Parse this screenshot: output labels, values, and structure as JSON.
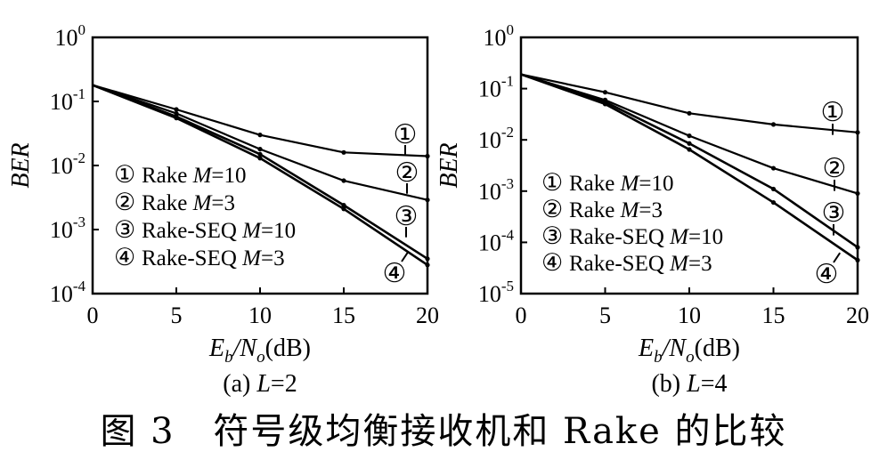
{
  "figure_caption": {
    "label": "图 3",
    "text": "符号级均衡接收机和 Rake 的比较"
  },
  "chart_data": [
    {
      "type": "line",
      "panel_label": "(a)",
      "panel_param": "L=2",
      "ylabel": "BER",
      "xlabel_parts": [
        "E",
        "b",
        "/N",
        "o",
        "(dB)"
      ],
      "yscale": "log",
      "xlim": [
        0,
        20
      ],
      "ylim": [
        0.0001,
        1
      ],
      "xticks": [
        0,
        5,
        10,
        15,
        20
      ],
      "yticks_exp": [
        0,
        -1,
        -2,
        -3,
        -4
      ],
      "grid": false,
      "legend_position": "bottom-left",
      "series": [
        {
          "name": "Rake M=10",
          "marker_label": "①",
          "name_text": "Rake ",
          "name_param": "M",
          "name_value": "=10",
          "x": [
            0,
            5,
            10,
            15,
            20
          ],
          "y": [
            0.18,
            0.075,
            0.03,
            0.016,
            0.014
          ]
        },
        {
          "name": "Rake M=3",
          "marker_label": "②",
          "name_text": "Rake ",
          "name_param": "M",
          "name_value": "=3",
          "x": [
            0,
            5,
            10,
            15,
            20
          ],
          "y": [
            0.18,
            0.065,
            0.018,
            0.0058,
            0.0029
          ]
        },
        {
          "name": "Rake-SEQ M=10",
          "marker_label": "③",
          "name_text": "Rake-SEQ ",
          "name_param": "M",
          "name_value": "=10",
          "x": [
            0,
            5,
            10,
            15,
            20
          ],
          "y": [
            0.18,
            0.058,
            0.015,
            0.0024,
            0.00035
          ]
        },
        {
          "name": "Rake-SEQ M=3",
          "marker_label": "④",
          "name_text": "Rake-SEQ ",
          "name_param": "M",
          "name_value": "=3",
          "x": [
            0,
            5,
            10,
            15,
            20
          ],
          "y": [
            0.18,
            0.055,
            0.013,
            0.0021,
            0.00028
          ]
        }
      ]
    },
    {
      "type": "line",
      "panel_label": "(b)",
      "panel_param": "L=4",
      "ylabel": "BER",
      "xlabel_parts": [
        "E",
        "b",
        "/N",
        "o",
        "(dB)"
      ],
      "yscale": "log",
      "xlim": [
        0,
        20
      ],
      "ylim": [
        1e-05,
        1
      ],
      "xticks": [
        0,
        5,
        10,
        15,
        20
      ],
      "yticks_exp": [
        0,
        -1,
        -2,
        -3,
        -4,
        -5
      ],
      "grid": false,
      "legend_position": "bottom-left",
      "series": [
        {
          "name": "Rake M=10",
          "marker_label": "①",
          "name_text": "Rake ",
          "name_param": "M",
          "name_value": "=10",
          "x": [
            0,
            5,
            10,
            15,
            20
          ],
          "y": [
            0.19,
            0.085,
            0.033,
            0.02,
            0.014
          ]
        },
        {
          "name": "Rake M=3",
          "marker_label": "②",
          "name_text": "Rake ",
          "name_param": "M",
          "name_value": "=3",
          "x": [
            0,
            5,
            10,
            15,
            20
          ],
          "y": [
            0.19,
            0.06,
            0.012,
            0.0028,
            0.0009
          ]
        },
        {
          "name": "Rake-SEQ M=10",
          "marker_label": "③",
          "name_text": "Rake-SEQ ",
          "name_param": "M",
          "name_value": "=10",
          "x": [
            0,
            5,
            10,
            15,
            20
          ],
          "y": [
            0.19,
            0.055,
            0.0085,
            0.0011,
            8e-05
          ]
        },
        {
          "name": "Rake-SEQ M=3",
          "marker_label": "④",
          "name_text": "Rake-SEQ ",
          "name_param": "M",
          "name_value": "=3",
          "x": [
            0,
            5,
            10,
            15,
            20
          ],
          "y": [
            0.19,
            0.05,
            0.0065,
            0.0006,
            4.5e-05
          ]
        }
      ]
    }
  ]
}
